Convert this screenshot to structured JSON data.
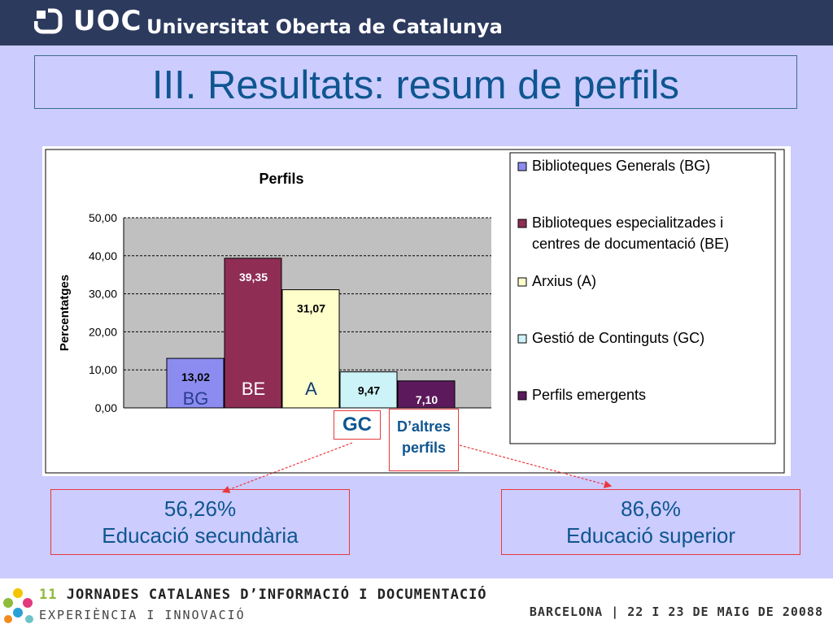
{
  "header": {
    "logo_short": "UOC",
    "logo_name": "Universitat Oberta de Catalunya"
  },
  "title": "III. Resultats: resum de perfils",
  "chart_data": {
    "type": "bar",
    "title": "Perfils",
    "ylabel": "Percentatges",
    "ylim": [
      0,
      50
    ],
    "yticks": [
      "0,00",
      "10,00",
      "20,00",
      "30,00",
      "40,00",
      "50,00"
    ],
    "grid": true,
    "legend_position": "right",
    "series": [
      {
        "name": "Biblioteques Generals (BG)",
        "value": 13.02,
        "label": "13,02",
        "color": "#8c8cf0"
      },
      {
        "name": "Biblioteques especialitzades i centres de documentació (BE)",
        "value": 39.35,
        "label": "39,35",
        "color": "#8f2d55"
      },
      {
        "name": "Arxius (A)",
        "value": 31.07,
        "label": "31,07",
        "color": "#ffffcc"
      },
      {
        "name": "Gestió de Continguts (GC)",
        "value": 9.47,
        "label": "9,47",
        "color": "#ccf3f8"
      },
      {
        "name": "Perfils emergents",
        "value": 7.1,
        "label": "7,10",
        "color": "#5c1a5c"
      }
    ],
    "legend_lines": [
      [
        "Biblioteques Generals (BG)"
      ],
      [
        "Biblioteques especialitzades i",
        "centres de documentació (BE)"
      ],
      [
        "Arxius (A)"
      ],
      [
        "Gestió de Continguts (GC)"
      ],
      [
        "Perfils emergents"
      ]
    ],
    "bar_tags": [
      "BG",
      "BE",
      "A"
    ]
  },
  "annotations": {
    "gc": "GC",
    "daltres_line1": "D’altres",
    "daltres_line2": "perfils",
    "left_pct": "56,26%",
    "left_text": "Educació secundària",
    "right_pct": "86,6%",
    "right_text": "Educació superior"
  },
  "footer": {
    "num": "11",
    "event": "JORNADES CATALANES D’INFORMACIÓ I DOCUMENTACIÓ",
    "subtitle": "EXPERIÈNCIA I INNOVACIÓ",
    "place_date": "BARCELONA | 22 I 23 DE MAIG DE 2008",
    "page": "8"
  }
}
